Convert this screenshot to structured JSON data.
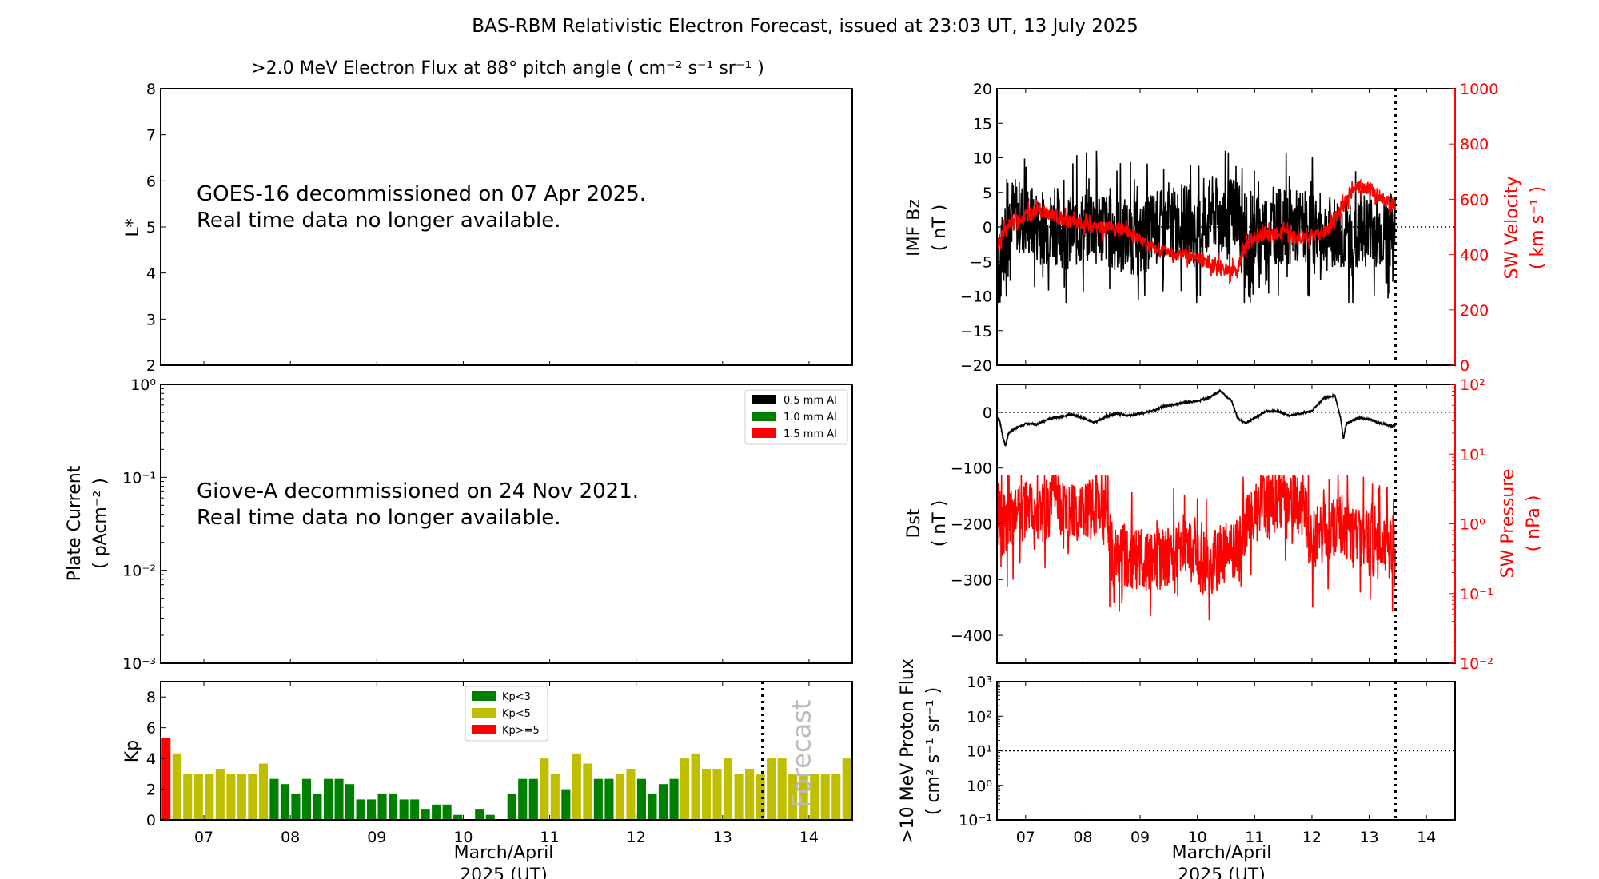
{
  "figure_title": "BAS-RBM Relativistic Electron Forecast, issued at 23:03 UT, 13 July 2025",
  "chart_data": [
    {
      "id": "electron-flux",
      "type": "heatmap",
      "title": ">2.0 MeV Electron Flux at 88° pitch angle ( cm⁻² s⁻¹ sr⁻¹ )",
      "ylabel": "L*",
      "ylim": [
        2,
        8
      ],
      "yticks": [
        "2",
        "3",
        "4",
        "5",
        "6",
        "7",
        "8"
      ],
      "xlim": [
        6.5,
        14.5
      ],
      "annotation_lines": [
        "GOES-16 decommissioned on 07 Apr 2025.",
        "Real time data no longer available."
      ]
    },
    {
      "id": "plate-current",
      "type": "line",
      "ylabel_line1": "Plate Current",
      "ylabel_line2": "( pAcm⁻² )",
      "yscale": "log",
      "ylim": [
        0.001,
        1
      ],
      "yticks": [
        "10⁰",
        "10⁻¹",
        "10⁻²",
        "10⁻³"
      ],
      "legend_position": "top-right",
      "legend": [
        {
          "label": "0.5 mm Al",
          "color": "#000000"
        },
        {
          "label": "1.0 mm Al",
          "color": "#008000"
        },
        {
          "label": "1.5 mm Al",
          "color": "#ff0000"
        }
      ],
      "annotation_lines": [
        "Giove-A decommissioned on 24 Nov 2021.",
        "Real time data no longer available."
      ]
    },
    {
      "id": "kp",
      "type": "bar",
      "ylabel": "Kp",
      "ylim": [
        0,
        9
      ],
      "yticks": [
        "0",
        "2",
        "4",
        "6",
        "8"
      ],
      "xlim": [
        6.5,
        14.5
      ],
      "xticks": [
        "07",
        "08",
        "09",
        "10",
        "11",
        "12",
        "13",
        "14"
      ],
      "xlabel_line1": "March/April",
      "xlabel_line2": "2025 (UT)",
      "bar_interval_days": 0.125,
      "first_bar_day": 6.5,
      "forecast_start_day": 13.46,
      "forecast_label": "Forecast",
      "legend_position": "top-center",
      "legend": [
        {
          "label": "Kp<3",
          "color": "#008000"
        },
        {
          "label": "Kp<5",
          "color": "#bfbf00"
        },
        {
          "label": "Kp>=5",
          "color": "#ff0000"
        }
      ],
      "values": [
        5.33,
        4.33,
        3,
        3,
        3,
        3.33,
        3,
        3,
        3,
        3.67,
        2.67,
        2.33,
        1.67,
        2.67,
        1.67,
        2.67,
        2.67,
        2.33,
        1.33,
        1.33,
        1.67,
        1.67,
        1.33,
        1.33,
        0.67,
        1,
        1,
        0.33,
        0,
        0.67,
        0.33,
        0,
        1.67,
        2.67,
        2.67,
        4,
        3,
        2,
        4.33,
        3.67,
        2.67,
        2.67,
        3,
        3.33,
        2.67,
        1.67,
        2.33,
        2.67,
        4,
        4.33,
        3.33,
        3.33,
        4,
        3,
        3.33,
        3,
        4,
        4,
        3,
        3,
        3,
        3,
        3,
        4
      ]
    },
    {
      "id": "imf-bz-sw-velocity",
      "type": "line",
      "ylabel_line1": "IMF Bz",
      "ylabel_line2": "( nT )",
      "ylim": [
        -20,
        20
      ],
      "yticks": [
        "20",
        "15",
        "10",
        "5",
        "0",
        "−15",
        "−10",
        "−5",
        "−20"
      ],
      "yticks_values": [
        20,
        15,
        10,
        5,
        0,
        -15,
        -10,
        -5,
        -20
      ],
      "y2label_line1": "SW Velocity",
      "y2label_line2": "( km s⁻¹ )",
      "y2lim": [
        0,
        1000
      ],
      "y2ticks": [
        "0",
        "200",
        "400",
        "600",
        "800",
        "1000"
      ],
      "xlim": [
        6.5,
        14.5
      ],
      "now_day": 13.46,
      "series": [
        {
          "name": "IMF Bz",
          "color": "#000000",
          "x": [
            6.5,
            6.6,
            6.75,
            7.0,
            7.25,
            7.5,
            7.75,
            8.0,
            8.25,
            8.5,
            8.75,
            9.0,
            9.25,
            9.5,
            9.75,
            10.0,
            10.25,
            10.5,
            10.7,
            10.9,
            11.0,
            11.25,
            11.5,
            11.75,
            12.0,
            12.25,
            12.5,
            12.75,
            13.0,
            13.25,
            13.46
          ],
          "y": [
            -10,
            -3,
            2,
            1,
            0,
            0,
            -1,
            0,
            1,
            -1,
            -1,
            -2,
            0,
            0,
            1,
            -1,
            2,
            1,
            3,
            -6,
            -1,
            0,
            0,
            0,
            0,
            -1,
            -1,
            -2,
            0,
            -1,
            0
          ],
          "range_min": -11,
          "range_max": 11
        },
        {
          "name": "SW Velocity",
          "color": "#ff0000",
          "x": [
            6.5,
            6.75,
            7.0,
            7.25,
            7.5,
            7.75,
            8.0,
            8.25,
            8.5,
            8.75,
            9.0,
            9.25,
            9.5,
            9.75,
            10.0,
            10.25,
            10.5,
            10.7,
            10.8,
            11.0,
            11.25,
            11.5,
            11.75,
            12.0,
            12.25,
            12.5,
            12.75,
            13.0,
            13.25,
            13.46
          ],
          "y": [
            440,
            520,
            540,
            560,
            540,
            520,
            510,
            500,
            500,
            490,
            450,
            420,
            410,
            400,
            385,
            370,
            345,
            340,
            420,
            460,
            470,
            480,
            460,
            470,
            480,
            560,
            650,
            640,
            600,
            580
          ]
        }
      ]
    },
    {
      "id": "dst-sw-pressure",
      "type": "line",
      "ylabel_line1": "Dst",
      "ylabel_line2": "( nT )",
      "ylim": [
        -450,
        50
      ],
      "yticks": [
        "0",
        "−100",
        "−200",
        "−300",
        "−400"
      ],
      "yticks_values": [
        0,
        -100,
        -200,
        -300,
        -400
      ],
      "y2label_line1": "SW Pressure",
      "y2label_line2": "( nPa )",
      "y2scale": "log",
      "y2lim": [
        0.01,
        100
      ],
      "y2ticks": [
        "10²",
        "10¹",
        "10⁰",
        "10⁻¹",
        "10⁻²"
      ],
      "xlim": [
        6.5,
        14.5
      ],
      "now_day": 13.46,
      "series": [
        {
          "name": "Dst",
          "color": "#000000",
          "x": [
            6.5,
            6.55,
            6.6,
            6.65,
            6.7,
            6.8,
            7.0,
            7.2,
            7.4,
            7.6,
            7.8,
            8.0,
            8.2,
            8.4,
            8.6,
            8.8,
            9.0,
            9.2,
            9.4,
            9.6,
            9.8,
            10.0,
            10.2,
            10.4,
            10.6,
            10.7,
            10.85,
            11.0,
            11.2,
            11.4,
            11.6,
            11.8,
            12.0,
            12.2,
            12.4,
            12.5,
            12.55,
            12.6,
            12.7,
            12.8,
            13.0,
            13.2,
            13.4,
            13.46
          ],
          "y": [
            -12,
            -15,
            -45,
            -60,
            -38,
            -30,
            -20,
            -22,
            -12,
            -8,
            -4,
            -10,
            -18,
            -8,
            -2,
            -6,
            -2,
            2,
            10,
            14,
            18,
            20,
            26,
            38,
            20,
            -10,
            -20,
            -10,
            2,
            2,
            -6,
            -2,
            2,
            25,
            30,
            -10,
            -48,
            -20,
            -15,
            -10,
            -12,
            -20,
            -25,
            -22
          ]
        },
        {
          "name": "SW Pressure",
          "color": "#ff0000",
          "x": [
            6.5,
            6.6,
            6.75,
            7.0,
            7.25,
            7.5,
            7.75,
            8.0,
            8.25,
            8.5,
            8.75,
            9.0,
            9.25,
            9.5,
            9.75,
            10.0,
            10.25,
            10.5,
            10.75,
            11.0,
            11.25,
            11.5,
            11.75,
            12.0,
            12.25,
            12.5,
            12.75,
            13.0,
            13.25,
            13.46
          ],
          "y": [
            1.5,
            1.0,
            1.2,
            1.5,
            1.3,
            2.0,
            1.5,
            1.4,
            2.0,
            0.4,
            0.35,
            0.3,
            0.3,
            0.35,
            0.5,
            0.3,
            0.25,
            0.4,
            0.5,
            1.5,
            2.0,
            2.2,
            2.0,
            0.6,
            0.8,
            1.0,
            0.6,
            0.5,
            0.4,
            0.5
          ],
          "range_min": 0.02,
          "range_max": 5
        }
      ]
    },
    {
      "id": "proton-flux",
      "type": "line",
      "ylabel_line1": ">10 MeV Proton Flux",
      "ylabel_line2": "( cm² s⁻¹ sr⁻¹ )",
      "yscale": "log",
      "ylim": [
        0.1,
        1000
      ],
      "yticks": [
        "10³",
        "10²",
        "10¹",
        "10⁰",
        "10⁻¹"
      ],
      "threshold": 10,
      "xlim": [
        6.5,
        14.5
      ],
      "xticks": [
        "07",
        "08",
        "09",
        "10",
        "11",
        "12",
        "13",
        "14"
      ],
      "xlabel_line1": "March/April",
      "xlabel_line2": "2025 (UT)",
      "now_day": 13.46
    }
  ]
}
